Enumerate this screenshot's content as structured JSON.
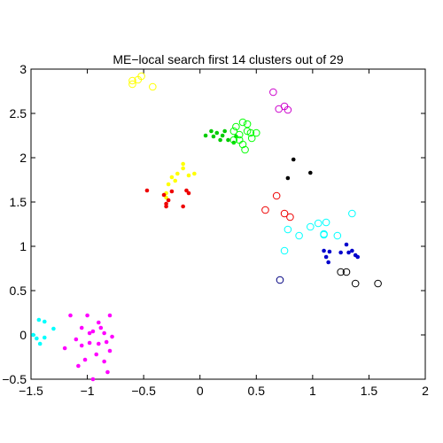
{
  "chart_data": {
    "type": "scatter",
    "title": "ME−local search first 14 clusters out of 29",
    "xlabel": "",
    "ylabel": "",
    "xlim": [
      -1.5,
      2
    ],
    "ylim": [
      -0.5,
      3
    ],
    "xticks": [
      "−1.5",
      "−1",
      "−0.5",
      "0",
      "0.5",
      "1",
      "1.5",
      "2"
    ],
    "yticks": [
      "−0.5",
      "0",
      "0.5",
      "1",
      "1.5",
      "2",
      "2.5",
      "3"
    ],
    "grid": false,
    "legend": "none",
    "series": [
      {
        "color": "#00ffff",
        "marker": "dot",
        "points": [
          [
            -1.45,
            -0.04
          ],
          [
            -1.43,
            0.17
          ],
          [
            -1.38,
            0.15
          ],
          [
            -1.42,
            -0.1
          ],
          [
            -1.38,
            -0.03
          ],
          [
            -1.3,
            0.07
          ],
          [
            -1.48,
            0.0
          ]
        ]
      },
      {
        "color": "#ff00ff",
        "marker": "dot",
        "points": [
          [
            -1.15,
            0.22
          ],
          [
            -1.05,
            0.08
          ],
          [
            -1.0,
            0.22
          ],
          [
            -0.95,
            0.04
          ],
          [
            -0.9,
            0.14
          ],
          [
            -0.85,
            0.02
          ],
          [
            -0.8,
            0.22
          ],
          [
            -0.78,
            -0.02
          ],
          [
            -1.1,
            -0.05
          ],
          [
            -1.05,
            -0.12
          ],
          [
            -0.98,
            -0.09
          ],
          [
            -0.92,
            -0.22
          ],
          [
            -0.85,
            -0.3
          ],
          [
            -0.8,
            -0.18
          ],
          [
            -1.02,
            -0.28
          ],
          [
            -0.9,
            -0.1
          ],
          [
            -1.2,
            -0.15
          ],
          [
            -0.95,
            -0.5
          ],
          [
            -1.08,
            -0.35
          ],
          [
            -0.82,
            -0.42
          ],
          [
            -0.88,
            0.08
          ],
          [
            -0.98,
            0.02
          ],
          [
            -0.83,
            -0.08
          ]
        ]
      },
      {
        "color": "#00cc00",
        "marker": "dot",
        "points": [
          [
            0.05,
            2.25
          ],
          [
            0.1,
            2.3
          ],
          [
            0.15,
            2.28
          ],
          [
            0.2,
            2.25
          ],
          [
            0.25,
            2.2
          ],
          [
            0.3,
            2.17
          ],
          [
            0.18,
            2.2
          ],
          [
            0.12,
            2.24
          ],
          [
            0.22,
            2.3
          ],
          [
            0.32,
            2.24
          ]
        ]
      },
      {
        "color": "#00ff00",
        "marker": "circle",
        "points": [
          [
            0.3,
            2.3
          ],
          [
            0.32,
            2.35
          ],
          [
            0.38,
            2.4
          ],
          [
            0.42,
            2.3
          ],
          [
            0.35,
            2.2
          ],
          [
            0.45,
            2.28
          ],
          [
            0.38,
            2.15
          ],
          [
            0.42,
            2.38
          ],
          [
            0.46,
            2.22
          ],
          [
            0.3,
            2.2
          ],
          [
            0.35,
            2.26
          ],
          [
            0.5,
            2.28
          ],
          [
            0.4,
            2.09
          ]
        ]
      },
      {
        "color": "#ffff00",
        "marker": "dot",
        "points": [
          [
            -0.3,
            1.55
          ],
          [
            -0.28,
            1.7
          ],
          [
            -0.25,
            1.78
          ],
          [
            -0.2,
            1.82
          ],
          [
            -0.15,
            1.88
          ],
          [
            -0.1,
            1.8
          ],
          [
            -0.05,
            1.82
          ],
          [
            -0.15,
            1.93
          ],
          [
            -0.3,
            1.6
          ],
          [
            -0.22,
            1.74
          ]
        ]
      },
      {
        "color": "#ffff00",
        "marker": "circle",
        "points": [
          [
            -0.6,
            2.83
          ],
          [
            -0.55,
            2.88
          ],
          [
            -0.52,
            2.92
          ],
          [
            -0.42,
            2.8
          ],
          [
            -0.6,
            2.87
          ]
        ]
      },
      {
        "color": "#ee0000",
        "marker": "dot",
        "points": [
          [
            -0.47,
            1.63
          ],
          [
            -0.3,
            1.45
          ],
          [
            -0.32,
            1.58
          ],
          [
            -0.28,
            1.52
          ],
          [
            -0.15,
            1.45
          ],
          [
            -0.12,
            1.63
          ],
          [
            -0.1,
            1.6
          ],
          [
            -0.25,
            1.62
          ],
          [
            -0.3,
            1.48
          ]
        ]
      },
      {
        "color": "#ee0000",
        "marker": "circle",
        "points": [
          [
            0.58,
            1.41
          ],
          [
            0.68,
            1.57
          ],
          [
            0.75,
            1.37
          ],
          [
            0.8,
            1.33
          ]
        ]
      },
      {
        "color": "#000000",
        "marker": "dot",
        "points": [
          [
            0.78,
            1.77
          ],
          [
            0.83,
            1.98
          ],
          [
            0.98,
            1.83
          ]
        ]
      },
      {
        "color": "#cc00cc",
        "marker": "circle",
        "points": [
          [
            0.65,
            2.74
          ],
          [
            0.7,
            2.55
          ],
          [
            0.75,
            2.58
          ],
          [
            0.78,
            2.54
          ]
        ]
      },
      {
        "color": "#00ffff",
        "marker": "circle",
        "points": [
          [
            0.78,
            1.19
          ],
          [
            0.88,
            1.12
          ],
          [
            0.98,
            1.22
          ],
          [
            1.05,
            1.26
          ],
          [
            1.1,
            1.14
          ],
          [
            1.12,
            1.27
          ],
          [
            1.22,
            1.12
          ],
          [
            1.1,
            1.13
          ],
          [
            0.75,
            0.95
          ],
          [
            1.35,
            1.37
          ]
        ]
      },
      {
        "color": "#0000cc",
        "marker": "dot",
        "points": [
          [
            1.1,
            0.95
          ],
          [
            1.12,
            0.88
          ],
          [
            1.14,
            0.82
          ],
          [
            1.15,
            0.94
          ],
          [
            1.25,
            0.93
          ],
          [
            1.3,
            1.02
          ],
          [
            1.32,
            0.93
          ],
          [
            1.35,
            0.95
          ],
          [
            1.38,
            0.9
          ],
          [
            1.4,
            0.88
          ]
        ]
      },
      {
        "color": "#000080",
        "marker": "circle",
        "points": [
          [
            0.71,
            0.62
          ]
        ]
      },
      {
        "color": "#000000",
        "marker": "circle",
        "points": [
          [
            1.25,
            0.71
          ],
          [
            1.3,
            0.71
          ],
          [
            1.38,
            0.58
          ],
          [
            1.58,
            0.58
          ]
        ]
      }
    ]
  }
}
